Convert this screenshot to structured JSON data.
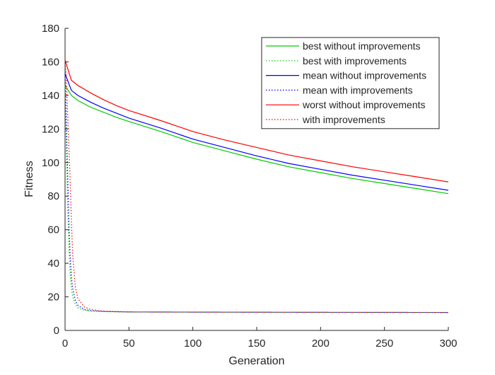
{
  "chart_data": {
    "type": "line",
    "title": "",
    "xlabel": "Generation",
    "ylabel": "Fitness",
    "xlim": [
      0,
      300
    ],
    "ylim": [
      0,
      180
    ],
    "x_ticks": [
      0,
      50,
      100,
      150,
      200,
      250,
      300
    ],
    "y_ticks": [
      0,
      20,
      40,
      60,
      80,
      100,
      120,
      140,
      160,
      180
    ],
    "grid": false,
    "legend_position": "top-right",
    "series": [
      {
        "name": "best without improvements",
        "color": "#00cc00",
        "line_style": "solid",
        "x": [
          0,
          5,
          10,
          20,
          30,
          40,
          50,
          75,
          100,
          125,
          150,
          175,
          200,
          225,
          250,
          275,
          300
        ],
        "y": [
          146,
          140,
          137,
          133,
          130,
          127,
          124.5,
          118.5,
          112,
          107,
          102,
          97.5,
          94,
          90.5,
          87.5,
          84.5,
          81.5
        ]
      },
      {
        "name": "best with improvements",
        "color": "#00cc00",
        "line_style": "dotted",
        "x": [
          0,
          1,
          2,
          3,
          4,
          5,
          6,
          8,
          10,
          15,
          20,
          30,
          50,
          100,
          200,
          300
        ],
        "y": [
          146,
          110,
          75,
          50,
          34,
          25,
          20,
          15.5,
          13.5,
          12,
          11.5,
          11.2,
          11,
          10.9,
          10.8,
          10.7
        ]
      },
      {
        "name": "mean without improvements",
        "color": "#0000ff",
        "line_style": "solid",
        "x": [
          0,
          5,
          10,
          20,
          30,
          40,
          50,
          75,
          100,
          125,
          150,
          175,
          200,
          225,
          250,
          275,
          300
        ],
        "y": [
          153,
          143,
          140,
          136,
          132.5,
          129.5,
          126.5,
          120.5,
          114,
          109,
          104,
          99.5,
          96,
          92.5,
          89.5,
          86.5,
          83.5
        ]
      },
      {
        "name": "mean with improvements",
        "color": "#0000ff",
        "line_style": "dotted",
        "x": [
          0,
          1,
          2,
          3,
          4,
          5,
          6,
          8,
          10,
          15,
          20,
          30,
          50,
          100,
          200,
          300
        ],
        "y": [
          153,
          125,
          95,
          65,
          45,
          32,
          25,
          18,
          15,
          12.5,
          11.8,
          11.3,
          11,
          10.9,
          10.8,
          10.7
        ]
      },
      {
        "name": "worst without improvements",
        "color": "#ff0000",
        "line_style": "solid",
        "x": [
          0,
          5,
          10,
          20,
          30,
          40,
          50,
          75,
          100,
          125,
          150,
          175,
          200,
          225,
          250,
          275,
          300
        ],
        "y": [
          161,
          149,
          146,
          141.5,
          137.5,
          134,
          131,
          125,
          118.5,
          113.5,
          109,
          104.5,
          101,
          97.5,
          94.5,
          91.5,
          88.5
        ]
      },
      {
        "name": "with improvements",
        "color": "#ff0000",
        "line_style": "dotted",
        "x": [
          0,
          1,
          2,
          3,
          4,
          5,
          6,
          8,
          10,
          15,
          20,
          30,
          50,
          100,
          200,
          300
        ],
        "y": [
          161,
          150,
          130,
          110,
          90,
          65,
          45,
          26,
          19,
          14,
          12.5,
          11.5,
          11,
          10.9,
          10.8,
          10.7
        ]
      }
    ]
  }
}
